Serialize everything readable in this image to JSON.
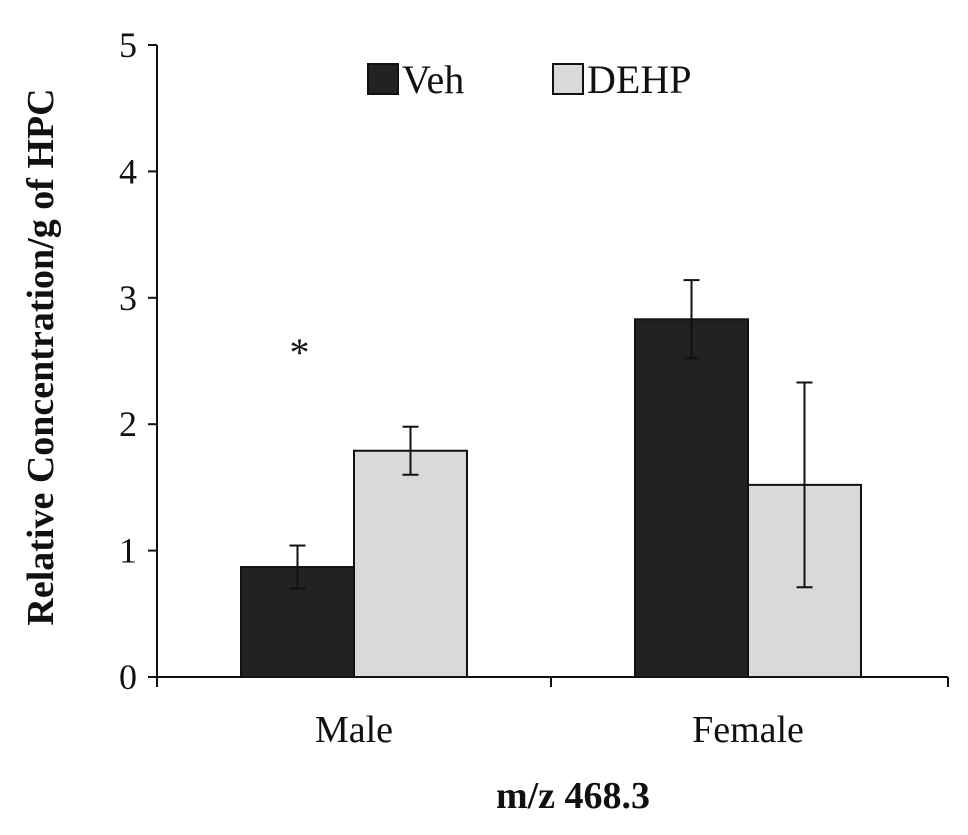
{
  "chart_data": {
    "type": "bar",
    "xlabel": "m/z 468.3",
    "ylabel": "Relative Concentration/g of HPC",
    "ylim": [
      0,
      5
    ],
    "yticks": [
      0,
      1,
      2,
      3,
      4,
      5
    ],
    "categories": [
      "Male",
      "Female"
    ],
    "series": [
      {
        "name": "Veh",
        "color": "#222222",
        "values": [
          0.87,
          2.83
        ],
        "errors": [
          0.17,
          0.31
        ]
      },
      {
        "name": "DEHP",
        "color": "#d9d9d9",
        "values": [
          1.79,
          1.52
        ],
        "errors": [
          0.19,
          0.81
        ]
      }
    ],
    "annotations": [
      {
        "text": "*",
        "category": "Male"
      }
    ],
    "legend_position": "top-center",
    "grid": false
  }
}
